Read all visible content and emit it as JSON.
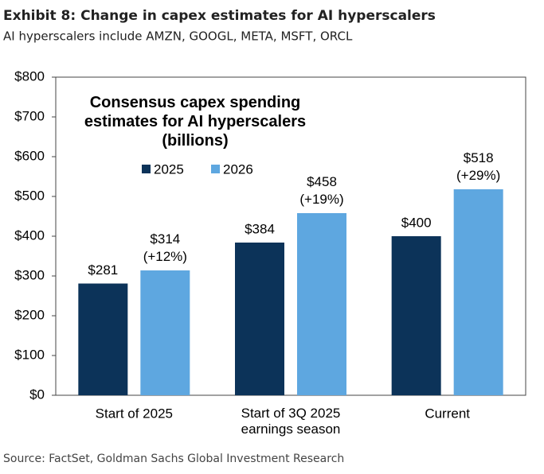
{
  "header": {
    "title": "Exhibit 8: Change in capex estimates for AI hyperscalers",
    "subtitle": "AI hyperscalers include AMZN, GOOGL, META, MSFT, ORCL"
  },
  "chart_data": {
    "type": "bar",
    "title": "Consensus capex spending\nestimates for AI hyperscalers\n(billions)",
    "categories": [
      "Start of 2025",
      "Start of 3Q 2025\nearnings season",
      "Current"
    ],
    "series": [
      {
        "name": "2025",
        "color": "#0c3359",
        "values": [
          281,
          384,
          400
        ],
        "value_labels": [
          "$281",
          "$384",
          "$400"
        ]
      },
      {
        "name": "2026",
        "color": "#5ea7e0",
        "values": [
          314,
          458,
          518
        ],
        "value_labels": [
          "$314\n(+12%)",
          "$458\n(+19%)",
          "$518\n(+29%)"
        ]
      }
    ],
    "ylim": [
      0,
      800
    ],
    "yticks": [
      {
        "value": 0,
        "label": "$0"
      },
      {
        "value": 100,
        "label": "$100"
      },
      {
        "value": 200,
        "label": "$200"
      },
      {
        "value": 300,
        "label": "$300"
      },
      {
        "value": 400,
        "label": "$400"
      },
      {
        "value": 500,
        "label": "$500"
      },
      {
        "value": 600,
        "label": "$600"
      },
      {
        "value": 700,
        "label": "$700"
      },
      {
        "value": 800,
        "label": "$800"
      }
    ],
    "legend": "top"
  },
  "footer": {
    "source": "Source: FactSet, Goldman Sachs Global Investment Research"
  }
}
